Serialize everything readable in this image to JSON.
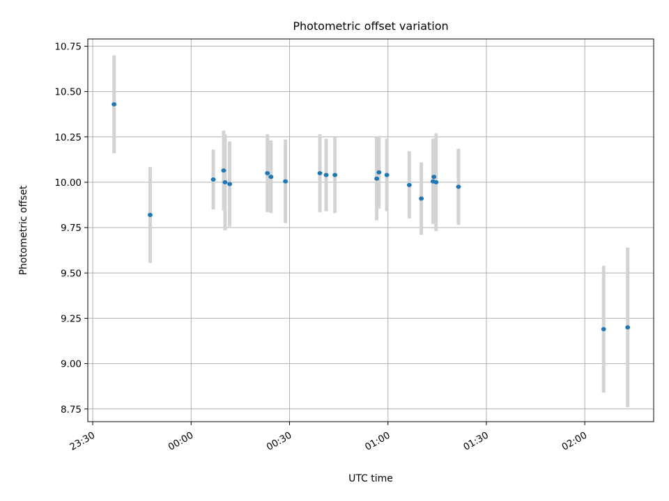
{
  "chart_data": {
    "type": "scatter",
    "title": "Photometric offset variation",
    "xlabel": "UTC time",
    "ylabel": "Photometric offset",
    "x_axis_type": "time",
    "xlim": [
      "2023-01-01T23:28:30",
      "2023-01-02T02:21:00"
    ],
    "ylim": [
      8.68,
      10.79
    ],
    "x_ticks": [
      {
        "time": "2023-01-01T23:30:00",
        "label": "23:30"
      },
      {
        "time": "2023-01-02T00:00:00",
        "label": "00:00"
      },
      {
        "time": "2023-01-02T00:30:00",
        "label": "00:30"
      },
      {
        "time": "2023-01-02T01:00:00",
        "label": "01:00"
      },
      {
        "time": "2023-01-02T01:30:00",
        "label": "01:30"
      },
      {
        "time": "2023-01-02T02:00:00",
        "label": "02:00"
      }
    ],
    "y_ticks": [
      {
        "value": 8.75,
        "label": "8.75"
      },
      {
        "value": 9.0,
        "label": "9.00"
      },
      {
        "value": 9.25,
        "label": "9.25"
      },
      {
        "value": 9.5,
        "label": "9.50"
      },
      {
        "value": 9.75,
        "label": "9.75"
      },
      {
        "value": 10.0,
        "label": "10.00"
      },
      {
        "value": 10.25,
        "label": "10.25"
      },
      {
        "value": 10.5,
        "label": "10.50"
      },
      {
        "value": 10.75,
        "label": "10.75"
      }
    ],
    "grid": true,
    "marker_color": "#1f77b4",
    "errorbar_color": "#d3d3d3",
    "points": [
      {
        "time": "2023-01-01T23:36:30",
        "y": 10.43,
        "yerr": 0.27
      },
      {
        "time": "2023-01-01T23:47:30",
        "y": 9.82,
        "yerr": 0.265
      },
      {
        "time": "2023-01-02T00:06:45",
        "y": 10.015,
        "yerr": 0.165
      },
      {
        "time": "2023-01-02T00:09:55",
        "y": 10.065,
        "yerr": 0.22
      },
      {
        "time": "2023-01-02T00:10:20",
        "y": 10.0,
        "yerr": 0.265
      },
      {
        "time": "2023-01-02T00:11:45",
        "y": 9.99,
        "yerr": 0.235
      },
      {
        "time": "2023-01-02T00:23:15",
        "y": 10.05,
        "yerr": 0.215
      },
      {
        "time": "2023-01-02T00:24:20",
        "y": 10.03,
        "yerr": 0.2
      },
      {
        "time": "2023-01-02T00:28:45",
        "y": 10.005,
        "yerr": 0.23
      },
      {
        "time": "2023-01-02T00:39:15",
        "y": 10.05,
        "yerr": 0.215
      },
      {
        "time": "2023-01-02T00:41:10",
        "y": 10.04,
        "yerr": 0.2
      },
      {
        "time": "2023-01-02T00:43:50",
        "y": 10.04,
        "yerr": 0.21
      },
      {
        "time": "2023-01-02T00:56:35",
        "y": 10.02,
        "yerr": 0.23
      },
      {
        "time": "2023-01-02T00:57:15",
        "y": 10.055,
        "yerr": 0.2
      },
      {
        "time": "2023-01-02T00:59:40",
        "y": 10.04,
        "yerr": 0.2
      },
      {
        "time": "2023-01-02T01:06:30",
        "y": 9.985,
        "yerr": 0.185
      },
      {
        "time": "2023-01-02T01:10:10",
        "y": 9.91,
        "yerr": 0.2
      },
      {
        "time": "2023-01-02T01:13:45",
        "y": 10.005,
        "yerr": 0.235
      },
      {
        "time": "2023-01-02T01:14:00",
        "y": 10.03,
        "yerr": 0.21
      },
      {
        "time": "2023-01-02T01:14:40",
        "y": 10.0,
        "yerr": 0.27
      },
      {
        "time": "2023-01-02T01:21:30",
        "y": 9.975,
        "yerr": 0.21
      },
      {
        "time": "2023-01-02T02:05:45",
        "y": 9.19,
        "yerr": 0.35
      },
      {
        "time": "2023-01-02T02:13:05",
        "y": 9.2,
        "yerr": 0.44
      }
    ]
  }
}
